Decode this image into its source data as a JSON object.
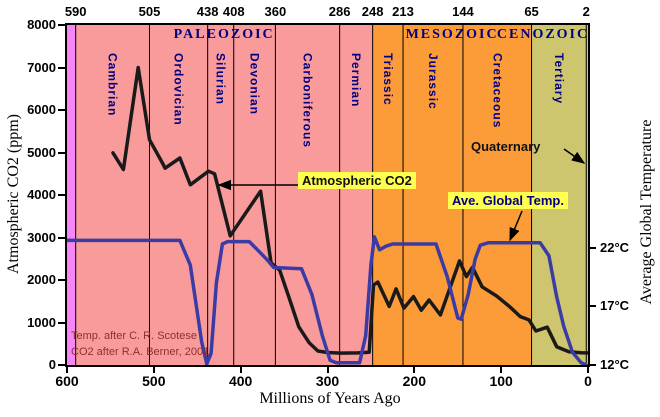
{
  "colors": {
    "precambrian_band": "#f586f5",
    "paleozoic_band": "#f99b9b",
    "mesozoic_band": "#fc9c38",
    "cenozoic_band": "#cec66e",
    "co2_line": "#1a1a1a",
    "temp_line": "#3b3ba5",
    "era_text": "#000080",
    "callout_bg": "#ffff50",
    "credit_text": "#8b3030"
  },
  "axes": {
    "x": {
      "label": "Millions of Years Ago",
      "range": [
        600,
        0
      ],
      "ticks": [
        600,
        500,
        400,
        300,
        200,
        100,
        0
      ]
    },
    "y_left": {
      "label": "Atmospheric CO2 (ppm)",
      "range": [
        0,
        8000
      ],
      "ticks": [
        8000,
        7000,
        6000,
        5000,
        4000,
        3000,
        2000,
        1000,
        0
      ]
    },
    "y_right": {
      "label": "Average Global Temperature",
      "ticks": [
        {
          "value": 22,
          "label": "22°C"
        },
        {
          "value": 17,
          "label": "17°C"
        },
        {
          "value": 12,
          "label": "12°C"
        }
      ]
    }
  },
  "timescale": {
    "boundary_labels_ma": [
      590,
      505,
      438,
      408,
      360,
      286,
      248,
      213,
      144,
      65,
      2
    ],
    "eras": [
      {
        "name": "",
        "start_ma": 600,
        "end_ma": 590,
        "color_key": "precambrian_band"
      },
      {
        "name": "PALEOZOIC",
        "start_ma": 590,
        "end_ma": 248,
        "color_key": "paleozoic_band"
      },
      {
        "name": "MESOZOIC",
        "start_ma": 248,
        "end_ma": 65,
        "color_key": "mesozoic_band"
      },
      {
        "name": "CENOZOIC",
        "start_ma": 65,
        "end_ma": 0,
        "color_key": "cenozoic_band"
      }
    ],
    "periods": [
      {
        "name": "Cambrian",
        "start_ma": 590,
        "end_ma": 505
      },
      {
        "name": "Ordovician",
        "start_ma": 505,
        "end_ma": 438
      },
      {
        "name": "Silurian",
        "start_ma": 438,
        "end_ma": 408
      },
      {
        "name": "Devonian",
        "start_ma": 408,
        "end_ma": 360
      },
      {
        "name": "Carboniferous",
        "start_ma": 360,
        "end_ma": 286
      },
      {
        "name": "Permian",
        "start_ma": 286,
        "end_ma": 248
      },
      {
        "name": "Triassic",
        "start_ma": 248,
        "end_ma": 213
      },
      {
        "name": "Jurassic",
        "start_ma": 213,
        "end_ma": 144
      },
      {
        "name": "Cretaceous",
        "start_ma": 144,
        "end_ma": 65
      },
      {
        "name": "Tertiary",
        "start_ma": 65,
        "end_ma": 2
      },
      {
        "name": "Quaternary",
        "start_ma": 2,
        "end_ma": 0,
        "label_style": "callout"
      }
    ]
  },
  "annotations": {
    "co2_label": "Atmospheric CO2",
    "temp_label": "Ave. Global Temp.",
    "quaternary_label": "Quaternary",
    "credit_line1": "Temp. after C. R. Scotese",
    "credit_line2": "CO2 after R.A. Berner, 2001"
  },
  "chart_data": {
    "type": "line",
    "title": "",
    "xlabel": "Millions of Years Ago",
    "x_range": [
      600,
      0
    ],
    "ylabel_left": "Atmospheric CO2 (ppm)",
    "ylim_left": [
      0,
      8000
    ],
    "ylabel_right": "Average Global Temperature",
    "ylim_right_c": [
      12,
      24.9
    ],
    "right_tick_labels": [
      "22°C",
      "17°C",
      "12°C"
    ],
    "grid": "vertical period boundaries only",
    "legend": "inline yellow callout boxes",
    "series": [
      {
        "name": "Atmospheric CO2",
        "axis": "left",
        "units": "ppm",
        "color": "#1a1a1a",
        "points_ma_ppm": [
          [
            547,
            4990
          ],
          [
            535,
            4600
          ],
          [
            518,
            7000
          ],
          [
            505,
            5300
          ],
          [
            490,
            4750
          ],
          [
            487,
            4630
          ],
          [
            470,
            4870
          ],
          [
            458,
            4240
          ],
          [
            437,
            4560
          ],
          [
            430,
            4500
          ],
          [
            412,
            3040
          ],
          [
            377,
            4090
          ],
          [
            365,
            2400
          ],
          [
            355,
            2230
          ],
          [
            345,
            1630
          ],
          [
            333,
            900
          ],
          [
            321,
            520
          ],
          [
            311,
            330
          ],
          [
            300,
            295
          ],
          [
            285,
            280
          ],
          [
            265,
            285
          ],
          [
            252,
            300
          ],
          [
            247,
            1880
          ],
          [
            242,
            1950
          ],
          [
            229,
            1380
          ],
          [
            221,
            1790
          ],
          [
            212,
            1340
          ],
          [
            201,
            1610
          ],
          [
            192,
            1290
          ],
          [
            183,
            1530
          ],
          [
            170,
            1180
          ],
          [
            148,
            2450
          ],
          [
            140,
            2080
          ],
          [
            133,
            2300
          ],
          [
            122,
            1840
          ],
          [
            105,
            1620
          ],
          [
            90,
            1370
          ],
          [
            78,
            1140
          ],
          [
            68,
            1060
          ],
          [
            60,
            800
          ],
          [
            47,
            890
          ],
          [
            36,
            430
          ],
          [
            22,
            310
          ],
          [
            8,
            290
          ],
          [
            1,
            285
          ]
        ]
      },
      {
        "name": "Ave. Global Temp.",
        "axis": "right",
        "units": "°C",
        "color": "#3b3ba5",
        "points_ma_c": [
          [
            600,
            22.6
          ],
          [
            470,
            22.6
          ],
          [
            458,
            20.5
          ],
          [
            445,
            14.0
          ],
          [
            439,
            12.1
          ],
          [
            434,
            13.0
          ],
          [
            428,
            19.0
          ],
          [
            421,
            22.3
          ],
          [
            415,
            22.5
          ],
          [
            390,
            22.5
          ],
          [
            378,
            21.6
          ],
          [
            370,
            21.0
          ],
          [
            362,
            20.3
          ],
          [
            330,
            20.2
          ],
          [
            318,
            18.0
          ],
          [
            306,
            14.5
          ],
          [
            297,
            12.4
          ],
          [
            290,
            12.2
          ],
          [
            263,
            12.2
          ],
          [
            256,
            14.5
          ],
          [
            250,
            20.5
          ],
          [
            246,
            22.9
          ],
          [
            240,
            21.8
          ],
          [
            233,
            22.1
          ],
          [
            225,
            22.3
          ],
          [
            175,
            22.3
          ],
          [
            162,
            19.5
          ],
          [
            150,
            16.0
          ],
          [
            146,
            15.9
          ],
          [
            138,
            18.0
          ],
          [
            130,
            21.0
          ],
          [
            124,
            22.2
          ],
          [
            115,
            22.4
          ],
          [
            55,
            22.4
          ],
          [
            45,
            21.3
          ],
          [
            36,
            17.8
          ],
          [
            28,
            15.3
          ],
          [
            18,
            13.1
          ],
          [
            8,
            12.2
          ],
          [
            2,
            12.0
          ]
        ]
      }
    ]
  }
}
